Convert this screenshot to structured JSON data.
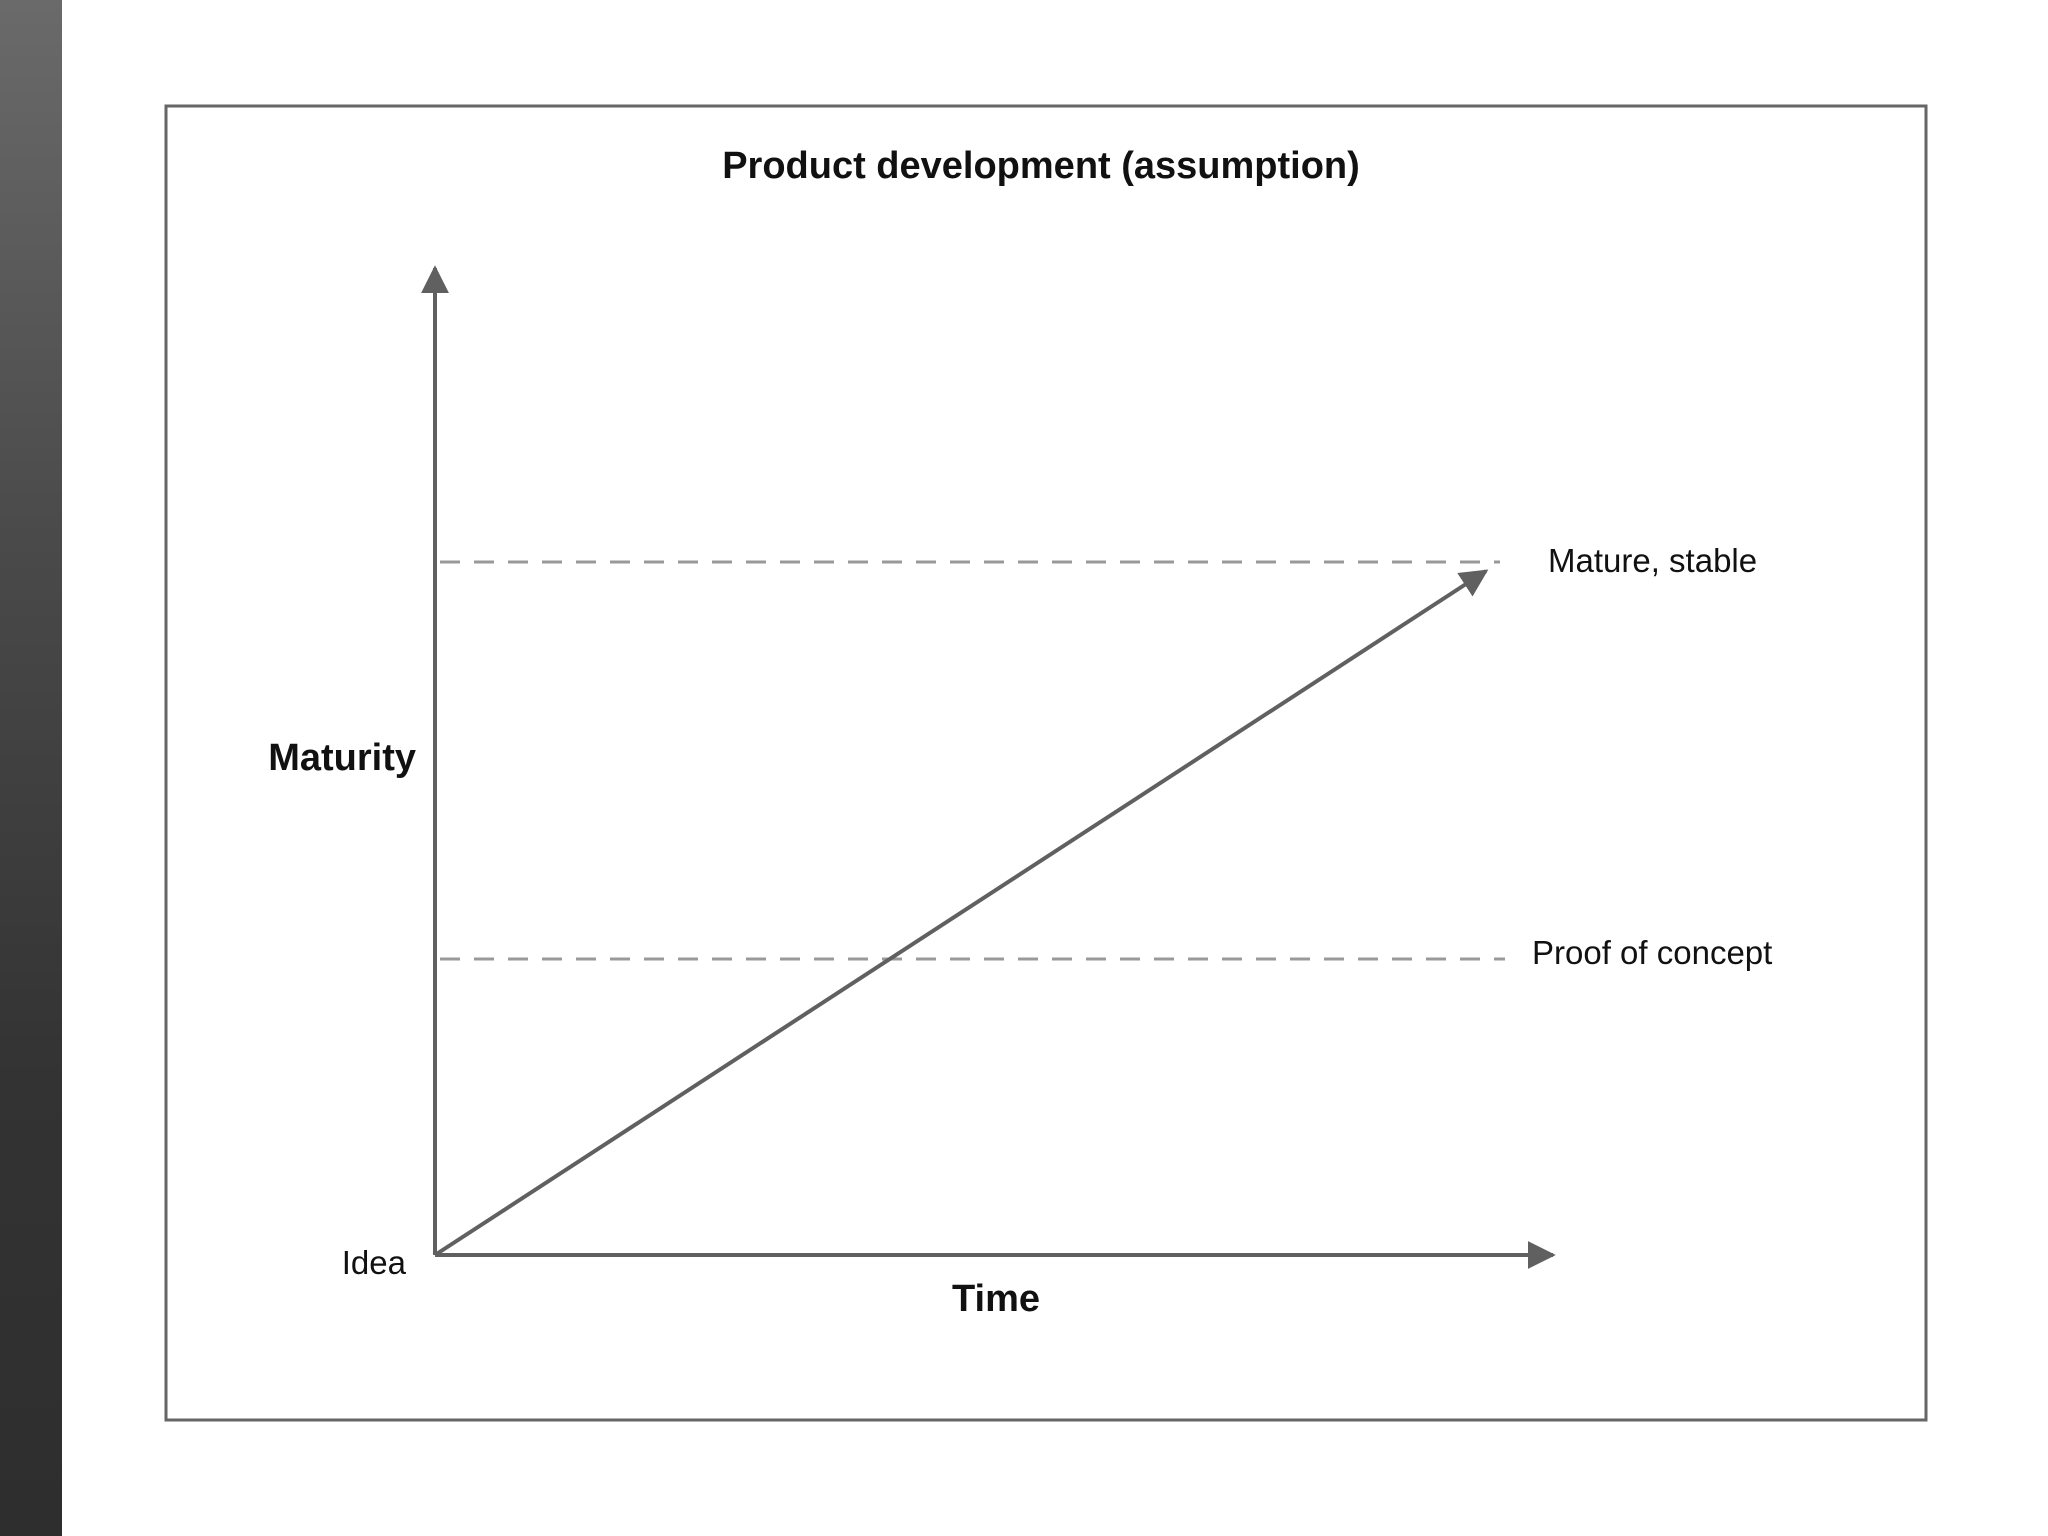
{
  "title": "Product development (assumption)",
  "axes": {
    "y_label": "Maturity",
    "x_label": "Time",
    "origin_label": "Idea"
  },
  "levels": [
    {
      "label": "Proof of concept"
    },
    {
      "label": "Mature, stable"
    }
  ],
  "colors": {
    "frame": "#666666",
    "axis": "#606060",
    "dashed": "#999999",
    "sidebar_dark": "#2e2e2e",
    "sidebar_light": "#6a6a6a"
  }
}
